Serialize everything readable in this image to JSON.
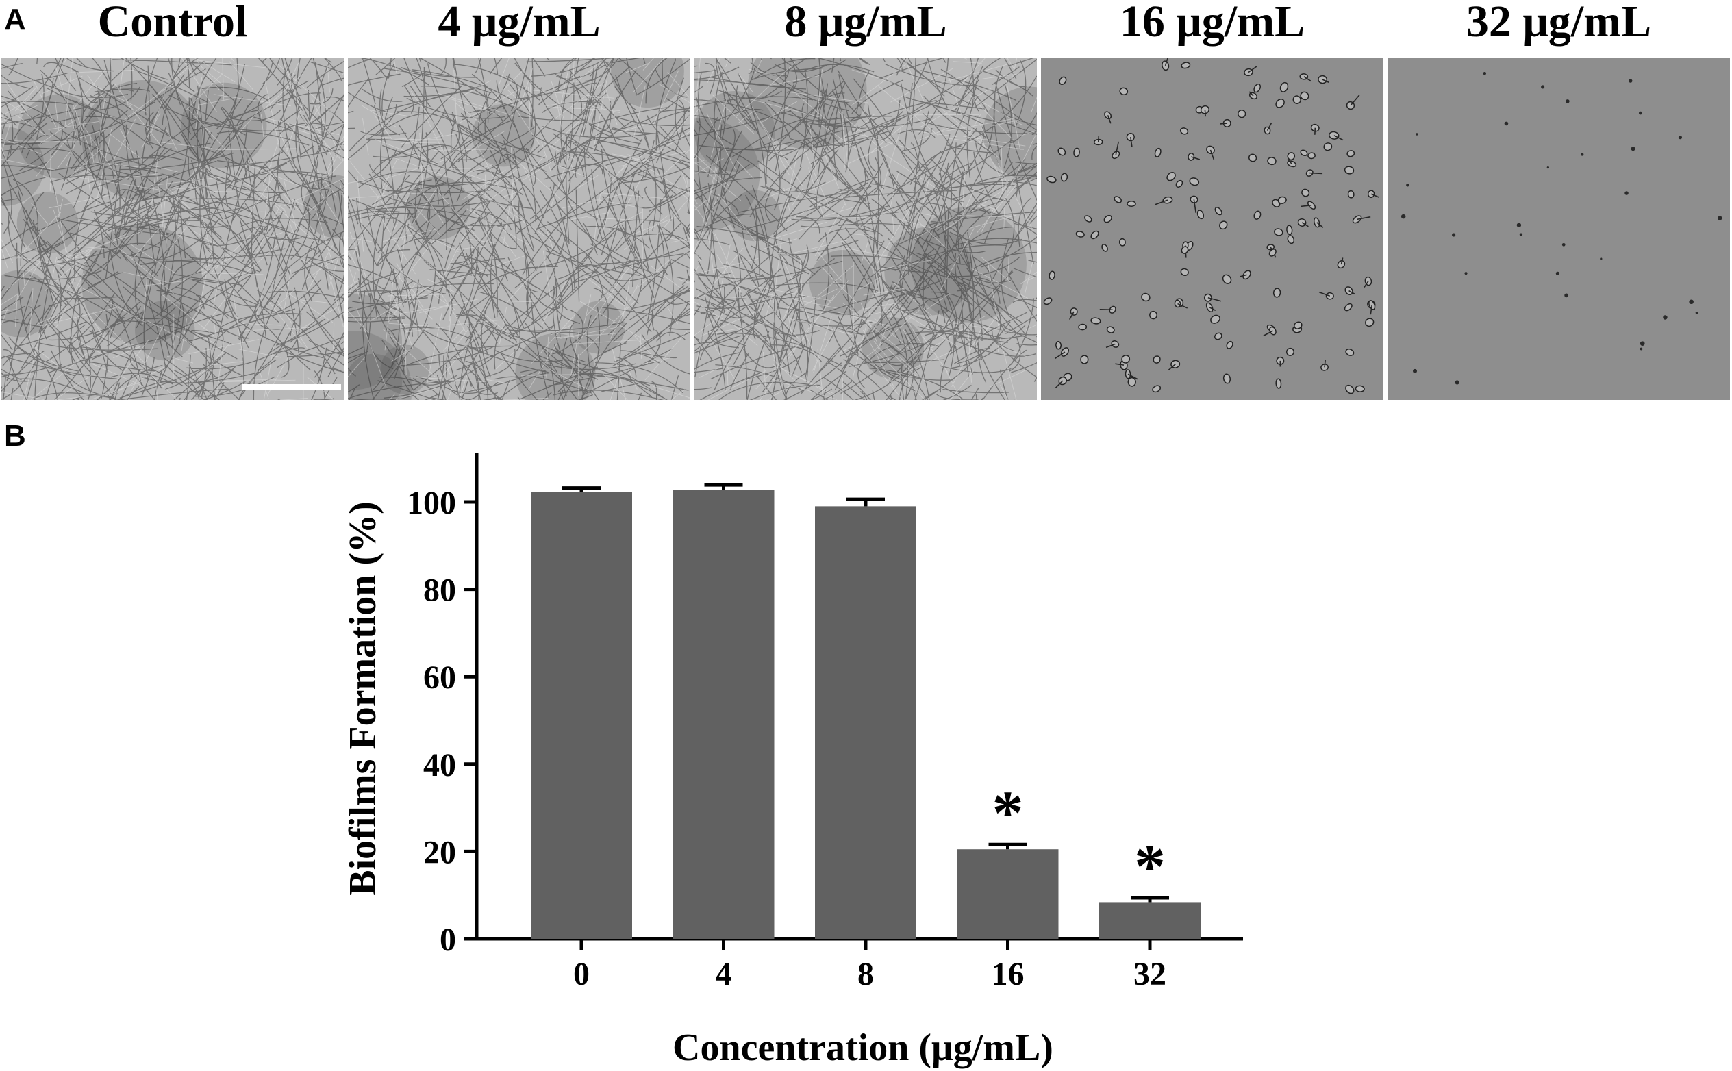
{
  "panel_a": {
    "letter": "A",
    "panels": [
      {
        "title": "Control",
        "growth": "dense-hyphae"
      },
      {
        "title": "4 μg/mL",
        "growth": "dense-hyphae"
      },
      {
        "title": "8 μg/mL",
        "growth": "dense-hyphae"
      },
      {
        "title": "16 μg/mL",
        "growth": "sparse-yeast"
      },
      {
        "title": "32 μg/mL",
        "growth": "very-sparse"
      }
    ],
    "colors": {
      "hyphae_bg": "#b9b9b9",
      "sparse_bg": "#8e8e8e",
      "scale_bar": "#ffffff"
    }
  },
  "panel_b": {
    "letter": "B"
  },
  "chart_data": {
    "type": "bar",
    "title": "",
    "xlabel": "Concentration (μg/mL)",
    "ylabel": "Biofilms Formation (%)",
    "categories": [
      "0",
      "4",
      "8",
      "16",
      "32"
    ],
    "values": [
      102.2,
      102.8,
      99.0,
      20.5,
      8.4
    ],
    "errors": [
      1.0,
      1.1,
      1.6,
      1.1,
      1.0
    ],
    "significance": [
      "",
      "",
      "",
      "*",
      "*"
    ],
    "ylim": [
      0,
      110
    ],
    "yticks": [
      0,
      20,
      40,
      60,
      80,
      100
    ],
    "grid": false,
    "bar_color": "#616161"
  }
}
